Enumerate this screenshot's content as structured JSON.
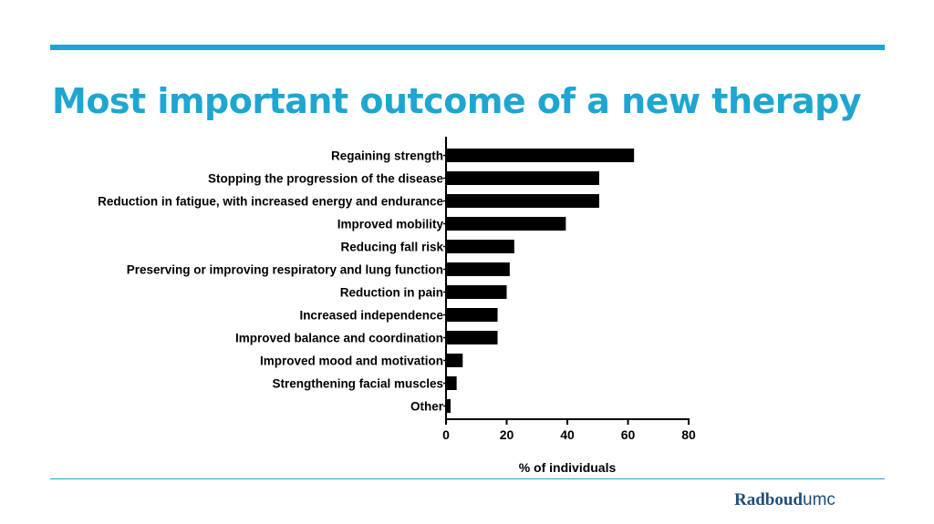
{
  "slide": {
    "title": "Most important outcome of a new therapy",
    "accent_color": "#1fa6d0",
    "logo": {
      "primary": "Radboud",
      "secondary": "umc",
      "color": "#1f4e79"
    }
  },
  "chart_data": {
    "type": "bar",
    "orientation": "horizontal",
    "title": "",
    "xlabel": "% of individuals",
    "ylabel": "",
    "xlim": [
      0,
      80
    ],
    "xticks": [
      0,
      20,
      40,
      60,
      80
    ],
    "grid": false,
    "bar_color": "#000000",
    "categories": [
      "Regaining strength",
      "Stopping the progression of the disease",
      "Reduction in fatigue, with increased energy and endurance",
      "Improved mobility",
      "Reducing fall risk",
      "Preserving or improving respiratory and lung function",
      "Reduction in pain",
      "Increased independence",
      "Improved balance and coordination",
      "Improved mood and motivation",
      "Strengthening facial muscles",
      "Other"
    ],
    "values": [
      62,
      50.5,
      50.5,
      39.5,
      22.5,
      21,
      20,
      17,
      17,
      5.5,
      3.5,
      1.5
    ]
  }
}
